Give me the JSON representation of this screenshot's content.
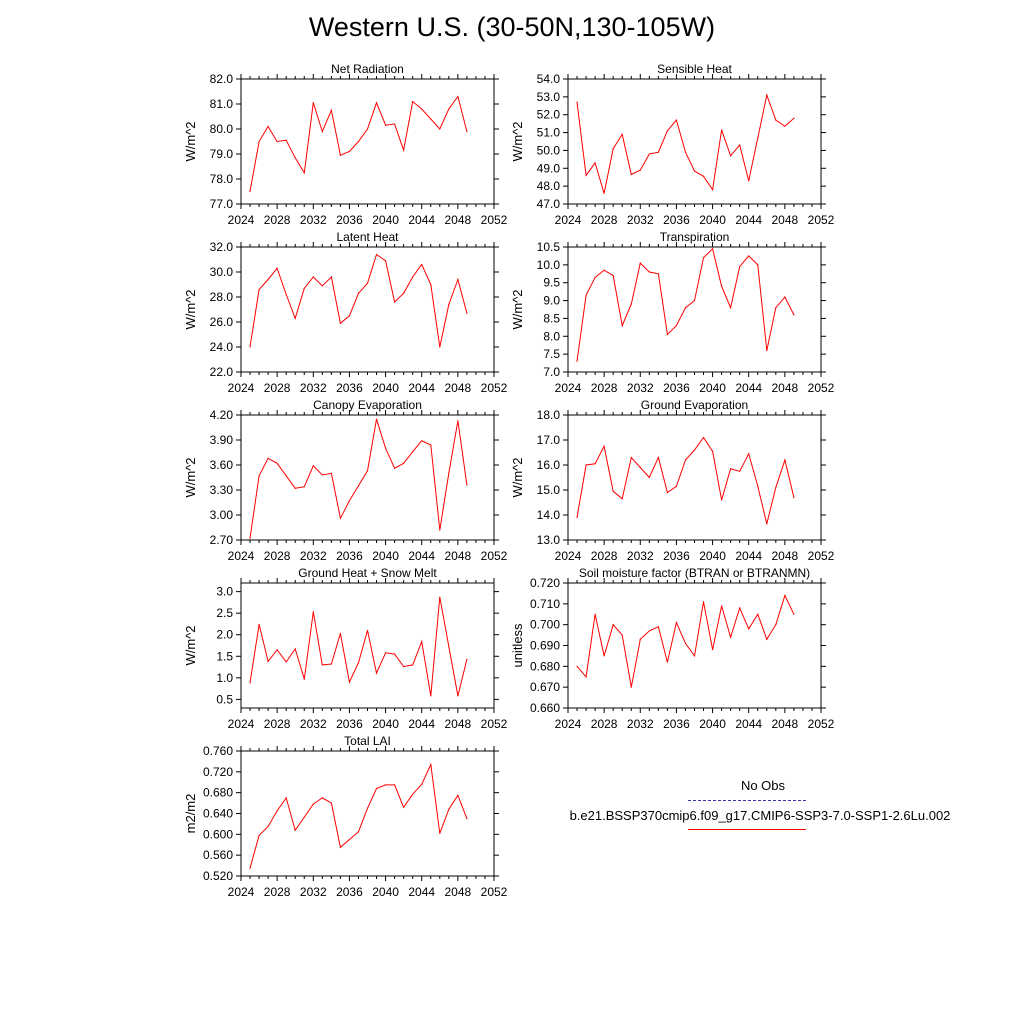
{
  "title": "Western U.S. (30-50N,130-105W)",
  "colors": {
    "series": "#ff0000",
    "obs": "#3333aa",
    "axis": "#000000"
  },
  "legend": {
    "obs_label": "No Obs",
    "model_label": "b.e21.BSSP370cmip6.f09_g17.CMIP6-SSP3-7.0-SSP1-2.6Lu.002"
  },
  "chart_data": [
    {
      "type": "line",
      "title": "Net Radiation",
      "ylabel": "W/m^2",
      "xlim": [
        2024,
        2052
      ],
      "xticks": [
        "2024",
        "2028",
        "2032",
        "2036",
        "2040",
        "2044",
        "2048",
        "2052"
      ],
      "ylim": [
        77.0,
        82.0
      ],
      "yticks": [
        "77.0",
        "78.0",
        "79.0",
        "80.0",
        "81.0",
        "82.0"
      ],
      "x": [
        2025,
        2026,
        2027,
        2028,
        2029,
        2030,
        2031,
        2032,
        2033,
        2034,
        2035,
        2036,
        2037,
        2038,
        2039,
        2040,
        2041,
        2042,
        2043,
        2044,
        2045,
        2046,
        2047,
        2048,
        2049
      ],
      "values": [
        77.5,
        79.5,
        80.1,
        79.5,
        79.55,
        78.85,
        78.25,
        81.05,
        79.9,
        80.75,
        78.95,
        79.1,
        79.5,
        80.0,
        81.05,
        80.15,
        80.2,
        79.15,
        81.1,
        80.8,
        80.4,
        80.0,
        80.8,
        81.3,
        79.9
      ]
    },
    {
      "type": "line",
      "title": "Sensible Heat",
      "ylabel": "W/m^2",
      "xlim": [
        2024,
        2052
      ],
      "xticks": [
        "2024",
        "2028",
        "2032",
        "2036",
        "2040",
        "2044",
        "2048",
        "2052"
      ],
      "ylim": [
        47.0,
        54.0
      ],
      "yticks": [
        "47.0",
        "48.0",
        "49.0",
        "50.0",
        "51.0",
        "52.0",
        "53.0",
        "54.0"
      ],
      "x": [
        2025,
        2026,
        2027,
        2028,
        2029,
        2030,
        2031,
        2032,
        2033,
        2034,
        2035,
        2036,
        2037,
        2038,
        2039,
        2040,
        2041,
        2042,
        2043,
        2044,
        2045,
        2046,
        2047,
        2048,
        2049
      ],
      "values": [
        52.7,
        48.6,
        49.3,
        47.6,
        50.1,
        50.9,
        48.65,
        48.9,
        49.8,
        49.9,
        51.1,
        51.7,
        49.9,
        48.85,
        48.55,
        47.8,
        51.15,
        49.7,
        50.3,
        48.3,
        50.7,
        53.1,
        51.7,
        51.35,
        51.8
      ]
    },
    {
      "type": "line",
      "title": "Latent Heat",
      "ylabel": "W/m^2",
      "xlim": [
        2024,
        2052
      ],
      "xticks": [
        "2024",
        "2028",
        "2032",
        "2036",
        "2040",
        "2044",
        "2048",
        "2052"
      ],
      "ylim": [
        22.0,
        32.0
      ],
      "yticks": [
        "22.0",
        "24.0",
        "26.0",
        "28.0",
        "30.0",
        "32.0"
      ],
      "x": [
        2025,
        2026,
        2027,
        2028,
        2029,
        2030,
        2031,
        2032,
        2033,
        2034,
        2035,
        2036,
        2037,
        2038,
        2039,
        2040,
        2041,
        2042,
        2043,
        2044,
        2045,
        2046,
        2047,
        2048,
        2049
      ],
      "values": [
        24.0,
        28.6,
        29.4,
        30.3,
        28.2,
        26.3,
        28.7,
        29.6,
        28.9,
        29.6,
        25.9,
        26.5,
        28.3,
        29.1,
        31.4,
        30.9,
        27.6,
        28.3,
        29.6,
        30.6,
        29.0,
        24.0,
        27.4,
        29.4,
        26.7
      ]
    },
    {
      "type": "line",
      "title": "Transpiration",
      "ylabel": "W/m^2",
      "xlim": [
        2024,
        2052
      ],
      "xticks": [
        "2024",
        "2028",
        "2032",
        "2036",
        "2040",
        "2044",
        "2048",
        "2052"
      ],
      "ylim": [
        7.0,
        10.5
      ],
      "yticks": [
        "7.0",
        "7.5",
        "8.0",
        "8.5",
        "9.0",
        "9.5",
        "10.0",
        "10.5"
      ],
      "x": [
        2025,
        2026,
        2027,
        2028,
        2029,
        2030,
        2031,
        2032,
        2033,
        2034,
        2035,
        2036,
        2037,
        2038,
        2039,
        2040,
        2041,
        2042,
        2043,
        2044,
        2045,
        2046,
        2047,
        2048,
        2049
      ],
      "values": [
        7.3,
        9.15,
        9.65,
        9.85,
        9.7,
        8.3,
        8.9,
        10.05,
        9.8,
        9.75,
        8.05,
        8.3,
        8.8,
        9.0,
        10.2,
        10.45,
        9.4,
        8.8,
        9.95,
        10.25,
        10.0,
        7.6,
        8.8,
        9.1,
        8.6
      ]
    },
    {
      "type": "line",
      "title": "Canopy Evaporation",
      "ylabel": "W/m^2",
      "xlim": [
        2024,
        2052
      ],
      "xticks": [
        "2024",
        "2028",
        "2032",
        "2036",
        "2040",
        "2044",
        "2048",
        "2052"
      ],
      "ylim": [
        2.7,
        4.2
      ],
      "yticks": [
        "2.70",
        "3.00",
        "3.30",
        "3.60",
        "3.90",
        "4.20"
      ],
      "x": [
        2025,
        2026,
        2027,
        2028,
        2029,
        2030,
        2031,
        2032,
        2033,
        2034,
        2035,
        2036,
        2037,
        2038,
        2039,
        2040,
        2041,
        2042,
        2043,
        2044,
        2045,
        2046,
        2047,
        2048,
        2049
      ],
      "values": [
        2.72,
        3.47,
        3.68,
        3.62,
        3.47,
        3.32,
        3.34,
        3.59,
        3.48,
        3.5,
        2.96,
        3.17,
        3.35,
        3.53,
        4.15,
        3.8,
        3.56,
        3.62,
        3.76,
        3.89,
        3.84,
        2.82,
        3.5,
        4.13,
        3.36
      ]
    },
    {
      "type": "line",
      "title": "Ground Evaporation",
      "ylabel": "W/m^2",
      "xlim": [
        2024,
        2052
      ],
      "xticks": [
        "2024",
        "2028",
        "2032",
        "2036",
        "2040",
        "2044",
        "2048",
        "2052"
      ],
      "ylim": [
        13.0,
        18.0
      ],
      "yticks": [
        "13.0",
        "14.0",
        "15.0",
        "16.0",
        "17.0",
        "18.0"
      ],
      "x": [
        2025,
        2026,
        2027,
        2028,
        2029,
        2030,
        2031,
        2032,
        2033,
        2034,
        2035,
        2036,
        2037,
        2038,
        2039,
        2040,
        2041,
        2042,
        2043,
        2044,
        2045,
        2046,
        2047,
        2048,
        2049
      ],
      "values": [
        13.9,
        16.0,
        16.05,
        16.75,
        14.95,
        14.65,
        16.3,
        15.9,
        15.5,
        16.3,
        14.9,
        15.15,
        16.2,
        16.6,
        17.1,
        16.55,
        14.6,
        15.85,
        15.75,
        16.45,
        15.15,
        13.65,
        15.1,
        16.2,
        14.7
      ]
    },
    {
      "type": "line",
      "title": "Ground Heat + Snow Melt",
      "ylabel": "W/m^2",
      "xlim": [
        2024,
        2052
      ],
      "xticks": [
        "2024",
        "2028",
        "2032",
        "2036",
        "2040",
        "2044",
        "2048",
        "2052"
      ],
      "ylim": [
        0.3,
        3.2
      ],
      "yticks": [
        "0.5",
        "1.0",
        "1.5",
        "2.0",
        "2.5",
        "3.0"
      ],
      "x": [
        2025,
        2026,
        2027,
        2028,
        2029,
        2030,
        2031,
        2032,
        2033,
        2034,
        2035,
        2036,
        2037,
        2038,
        2039,
        2040,
        2041,
        2042,
        2043,
        2044,
        2045,
        2046,
        2047,
        2048,
        2049
      ],
      "values": [
        0.88,
        2.24,
        1.38,
        1.65,
        1.37,
        1.67,
        0.97,
        2.53,
        1.3,
        1.32,
        2.03,
        0.9,
        1.35,
        2.1,
        1.11,
        1.58,
        1.55,
        1.26,
        1.3,
        1.84,
        0.58,
        2.87,
        1.73,
        0.58,
        1.43
      ]
    },
    {
      "type": "line",
      "title": "Soil moisture factor (BTRAN or BTRANMN)",
      "ylabel": "unitless",
      "xlim": [
        2024,
        2052
      ],
      "xticks": [
        "2024",
        "2028",
        "2032",
        "2036",
        "2040",
        "2044",
        "2048",
        "2052"
      ],
      "ylim": [
        0.66,
        0.72
      ],
      "yticks": [
        "0.660",
        "0.670",
        "0.680",
        "0.690",
        "0.700",
        "0.710",
        "0.720"
      ],
      "x": [
        2025,
        2026,
        2027,
        2028,
        2029,
        2030,
        2031,
        2032,
        2033,
        2034,
        2035,
        2036,
        2037,
        2038,
        2039,
        2040,
        2041,
        2042,
        2043,
        2044,
        2045,
        2046,
        2047,
        2048,
        2049
      ],
      "values": [
        0.68,
        0.675,
        0.705,
        0.685,
        0.7,
        0.695,
        0.67,
        0.693,
        0.697,
        0.699,
        0.682,
        0.701,
        0.691,
        0.685,
        0.711,
        0.688,
        0.709,
        0.694,
        0.708,
        0.698,
        0.705,
        0.693,
        0.7,
        0.714,
        0.705
      ]
    },
    {
      "type": "line",
      "title": "Total LAI",
      "ylabel": "m2/m2",
      "xlim": [
        2024,
        2052
      ],
      "xticks": [
        "2024",
        "2028",
        "2032",
        "2036",
        "2040",
        "2044",
        "2048",
        "2052"
      ],
      "ylim": [
        0.52,
        0.76
      ],
      "yticks": [
        "0.520",
        "0.560",
        "0.600",
        "0.640",
        "0.680",
        "0.720",
        "0.760"
      ],
      "x": [
        2025,
        2026,
        2027,
        2028,
        2029,
        2030,
        2031,
        2032,
        2033,
        2034,
        2035,
        2036,
        2037,
        2038,
        2039,
        2040,
        2041,
        2042,
        2043,
        2044,
        2045,
        2046,
        2047,
        2048,
        2049
      ],
      "values": [
        0.535,
        0.598,
        0.615,
        0.645,
        0.67,
        0.608,
        0.633,
        0.658,
        0.67,
        0.66,
        0.575,
        0.59,
        0.605,
        0.65,
        0.688,
        0.695,
        0.695,
        0.652,
        0.677,
        0.696,
        0.734,
        0.602,
        0.648,
        0.675,
        0.63
      ]
    }
  ]
}
